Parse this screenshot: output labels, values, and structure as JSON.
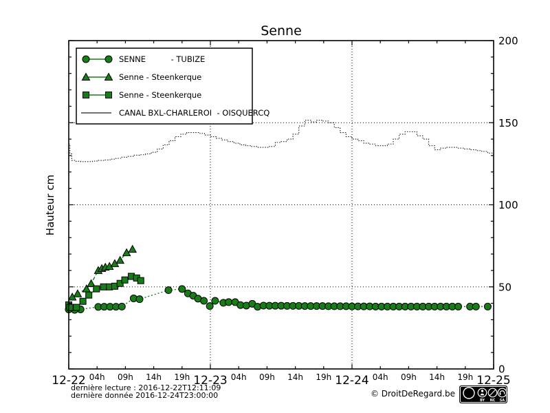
{
  "title": "Senne",
  "y_axis_label": "Hauteur cm",
  "footer": {
    "last_reading": "dernière lecture : 2016-12-22T12:11:09",
    "last_data": "dernière donnée  2016-12-24T23:00:00",
    "copyright": "© DroitDeRegard.be",
    "license_badge": {
      "logo": "CC",
      "parts": [
        "BY",
        "NC",
        "SA"
      ]
    }
  },
  "legend": {
    "items": [
      {
        "label": "SENNE          - TUBIZE",
        "marker": "circle"
      },
      {
        "label": "Senne - Steenkerque",
        "marker": "triangle"
      },
      {
        "label": "Senne - Steenkerque",
        "marker": "square"
      },
      {
        "label": "CANAL BXL-CHARLEROI  - OISQUERCQ",
        "marker": "line"
      }
    ]
  },
  "colors": {
    "series_green": "#177d17",
    "canal": "#1a1a1a",
    "grid": "#000000"
  },
  "chart_data": {
    "type": "line",
    "title": "Senne",
    "xlabel": "",
    "ylabel": "Hauteur cm",
    "ylim": [
      0,
      200
    ],
    "yticks": [
      0,
      50,
      100,
      150,
      200
    ],
    "y_minor_step": 10,
    "x_span_hours": 72,
    "x_days": [
      {
        "label": "12-22",
        "hour": 0
      },
      {
        "label": "12-23",
        "hour": 24
      },
      {
        "label": "12-24",
        "hour": 48
      },
      {
        "label": "12-25",
        "hour": 72
      }
    ],
    "x_hours": [
      "04h",
      "09h",
      "14h",
      "19h"
    ],
    "grid": {
      "h_values": [
        50,
        100,
        150
      ],
      "v_hours": [
        24,
        48
      ]
    },
    "legend_position": "upper left",
    "series": [
      {
        "name": "CANAL BXL-CHARLEROI - OISQUERCQ",
        "marker": "dot",
        "style": "steps",
        "color": "#1a1a1a",
        "dash": "1.5,2",
        "points": [
          [
            0,
            137
          ],
          [
            0.2,
            131
          ],
          [
            0.5,
            127
          ],
          [
            1,
            126.5
          ],
          [
            2,
            126.3
          ],
          [
            3,
            126.3
          ],
          [
            4,
            126.6
          ],
          [
            5,
            127
          ],
          [
            6,
            127.3
          ],
          [
            7,
            127.8
          ],
          [
            8,
            128.3
          ],
          [
            9,
            129
          ],
          [
            10,
            129.5
          ],
          [
            11,
            130.2
          ],
          [
            12,
            130.5
          ],
          [
            13,
            131
          ],
          [
            14,
            132
          ],
          [
            15,
            134
          ],
          [
            16,
            136.5
          ],
          [
            17,
            139
          ],
          [
            18,
            141.5
          ],
          [
            19,
            143
          ],
          [
            20,
            144
          ],
          [
            21,
            144
          ],
          [
            22,
            143.5
          ],
          [
            23,
            142.5
          ],
          [
            24,
            141.5
          ],
          [
            25,
            140.5
          ],
          [
            26,
            139.5
          ],
          [
            27,
            138.5
          ],
          [
            28,
            137.5
          ],
          [
            29,
            136.5
          ],
          [
            30,
            136
          ],
          [
            31,
            135.5
          ],
          [
            32,
            135
          ],
          [
            33,
            135
          ],
          [
            34,
            135.5
          ],
          [
            35,
            138
          ],
          [
            36,
            138.5
          ],
          [
            37,
            140
          ],
          [
            38,
            143
          ],
          [
            39,
            148
          ],
          [
            40,
            151.5
          ],
          [
            41,
            150.5
          ],
          [
            42,
            151.5
          ],
          [
            43,
            151
          ],
          [
            44,
            150
          ],
          [
            45,
            147
          ],
          [
            46,
            144
          ],
          [
            47,
            141.5
          ],
          [
            48,
            140
          ],
          [
            49,
            139
          ],
          [
            50,
            137.5
          ],
          [
            51,
            137
          ],
          [
            52,
            136
          ],
          [
            53,
            136
          ],
          [
            54,
            137
          ],
          [
            55,
            140
          ],
          [
            56,
            143
          ],
          [
            57,
            144.5
          ],
          [
            58,
            144.5
          ],
          [
            59,
            142
          ],
          [
            60,
            140
          ],
          [
            61,
            136
          ],
          [
            62,
            133.5
          ],
          [
            63,
            134.5
          ],
          [
            64,
            135
          ],
          [
            65,
            135
          ],
          [
            66,
            134.5
          ],
          [
            67,
            134
          ],
          [
            68,
            133.5
          ],
          [
            69,
            133
          ],
          [
            70,
            132.5
          ],
          [
            71,
            131.5
          ],
          [
            72,
            131
          ]
        ]
      },
      {
        "name": "SENNE - TUBIZE",
        "marker": "circle",
        "style": "markers",
        "color": "#177d17",
        "dash": "2,3",
        "points": [
          [
            0,
            36.3
          ],
          [
            1,
            36
          ],
          [
            2,
            36.3
          ],
          [
            5,
            37.8
          ],
          [
            6,
            37.9
          ],
          [
            7,
            37.9
          ],
          [
            8,
            37.9
          ],
          [
            9,
            38
          ],
          [
            11,
            43
          ],
          [
            12,
            42.5
          ],
          [
            16.9,
            48
          ],
          [
            19.2,
            48.7
          ],
          [
            20.2,
            46
          ],
          [
            21.1,
            44.6
          ],
          [
            21.9,
            42.8
          ],
          [
            22.9,
            41.5
          ],
          [
            23.9,
            38.3
          ],
          [
            24.8,
            41.5
          ],
          [
            26.2,
            40.3
          ],
          [
            27.1,
            40.7
          ],
          [
            28.2,
            40.7
          ],
          [
            29.1,
            38.9
          ],
          [
            30.1,
            38.6
          ],
          [
            31.1,
            39.7
          ],
          [
            32,
            37.9
          ],
          [
            33,
            38.6
          ],
          [
            34,
            38.5
          ],
          [
            35,
            38.5
          ],
          [
            36,
            38.5
          ],
          [
            37,
            38.4
          ],
          [
            38,
            38.4
          ],
          [
            39,
            38.4
          ],
          [
            40,
            38.3
          ],
          [
            41,
            38.3
          ],
          [
            42,
            38.3
          ],
          [
            43,
            38.3
          ],
          [
            44,
            38.2
          ],
          [
            45,
            38.2
          ],
          [
            46,
            38.2
          ],
          [
            47,
            38.2
          ],
          [
            48,
            38.1
          ],
          [
            49,
            38.1
          ],
          [
            50,
            38.1
          ],
          [
            51,
            38.1
          ],
          [
            52,
            38
          ],
          [
            53,
            38
          ],
          [
            54,
            38
          ],
          [
            55,
            38
          ],
          [
            56,
            38
          ],
          [
            57,
            38
          ],
          [
            58,
            38
          ],
          [
            59,
            38
          ],
          [
            60,
            38
          ],
          [
            61,
            38
          ],
          [
            62,
            38
          ],
          [
            63,
            38
          ],
          [
            64,
            38
          ],
          [
            65,
            38
          ],
          [
            66,
            38
          ],
          [
            68,
            38
          ],
          [
            69,
            38
          ],
          [
            71,
            38
          ]
        ]
      },
      {
        "name": "Senne - Steenkerque",
        "marker": "triangle",
        "style": "markers",
        "color": "#177d17",
        "dash": "5,3",
        "points": [
          [
            0.6,
            43.8
          ],
          [
            1.5,
            45.8
          ],
          [
            3,
            48.8
          ],
          [
            3.8,
            52
          ],
          [
            5,
            60
          ],
          [
            5.6,
            61.2
          ],
          [
            6.2,
            62
          ],
          [
            6.9,
            62.5
          ],
          [
            7.8,
            64.2
          ],
          [
            8.7,
            66.2
          ],
          [
            9.8,
            70.8
          ],
          [
            10.8,
            72.9
          ]
        ]
      },
      {
        "name": "Senne - Steenkerque",
        "marker": "square",
        "style": "markers",
        "color": "#177d17",
        "dash": "",
        "points": [
          [
            0,
            39
          ],
          [
            0.2,
            37.5
          ],
          [
            1.3,
            37.5
          ],
          [
            2.4,
            41.2
          ],
          [
            3.4,
            45
          ],
          [
            4.7,
            48.8
          ],
          [
            5.9,
            50
          ],
          [
            6.9,
            50
          ],
          [
            7.8,
            50.4
          ],
          [
            8.7,
            52.1
          ],
          [
            9.5,
            54.2
          ],
          [
            10.6,
            56.4
          ],
          [
            11.5,
            55.4
          ],
          [
            12.2,
            53.8
          ]
        ]
      }
    ]
  }
}
